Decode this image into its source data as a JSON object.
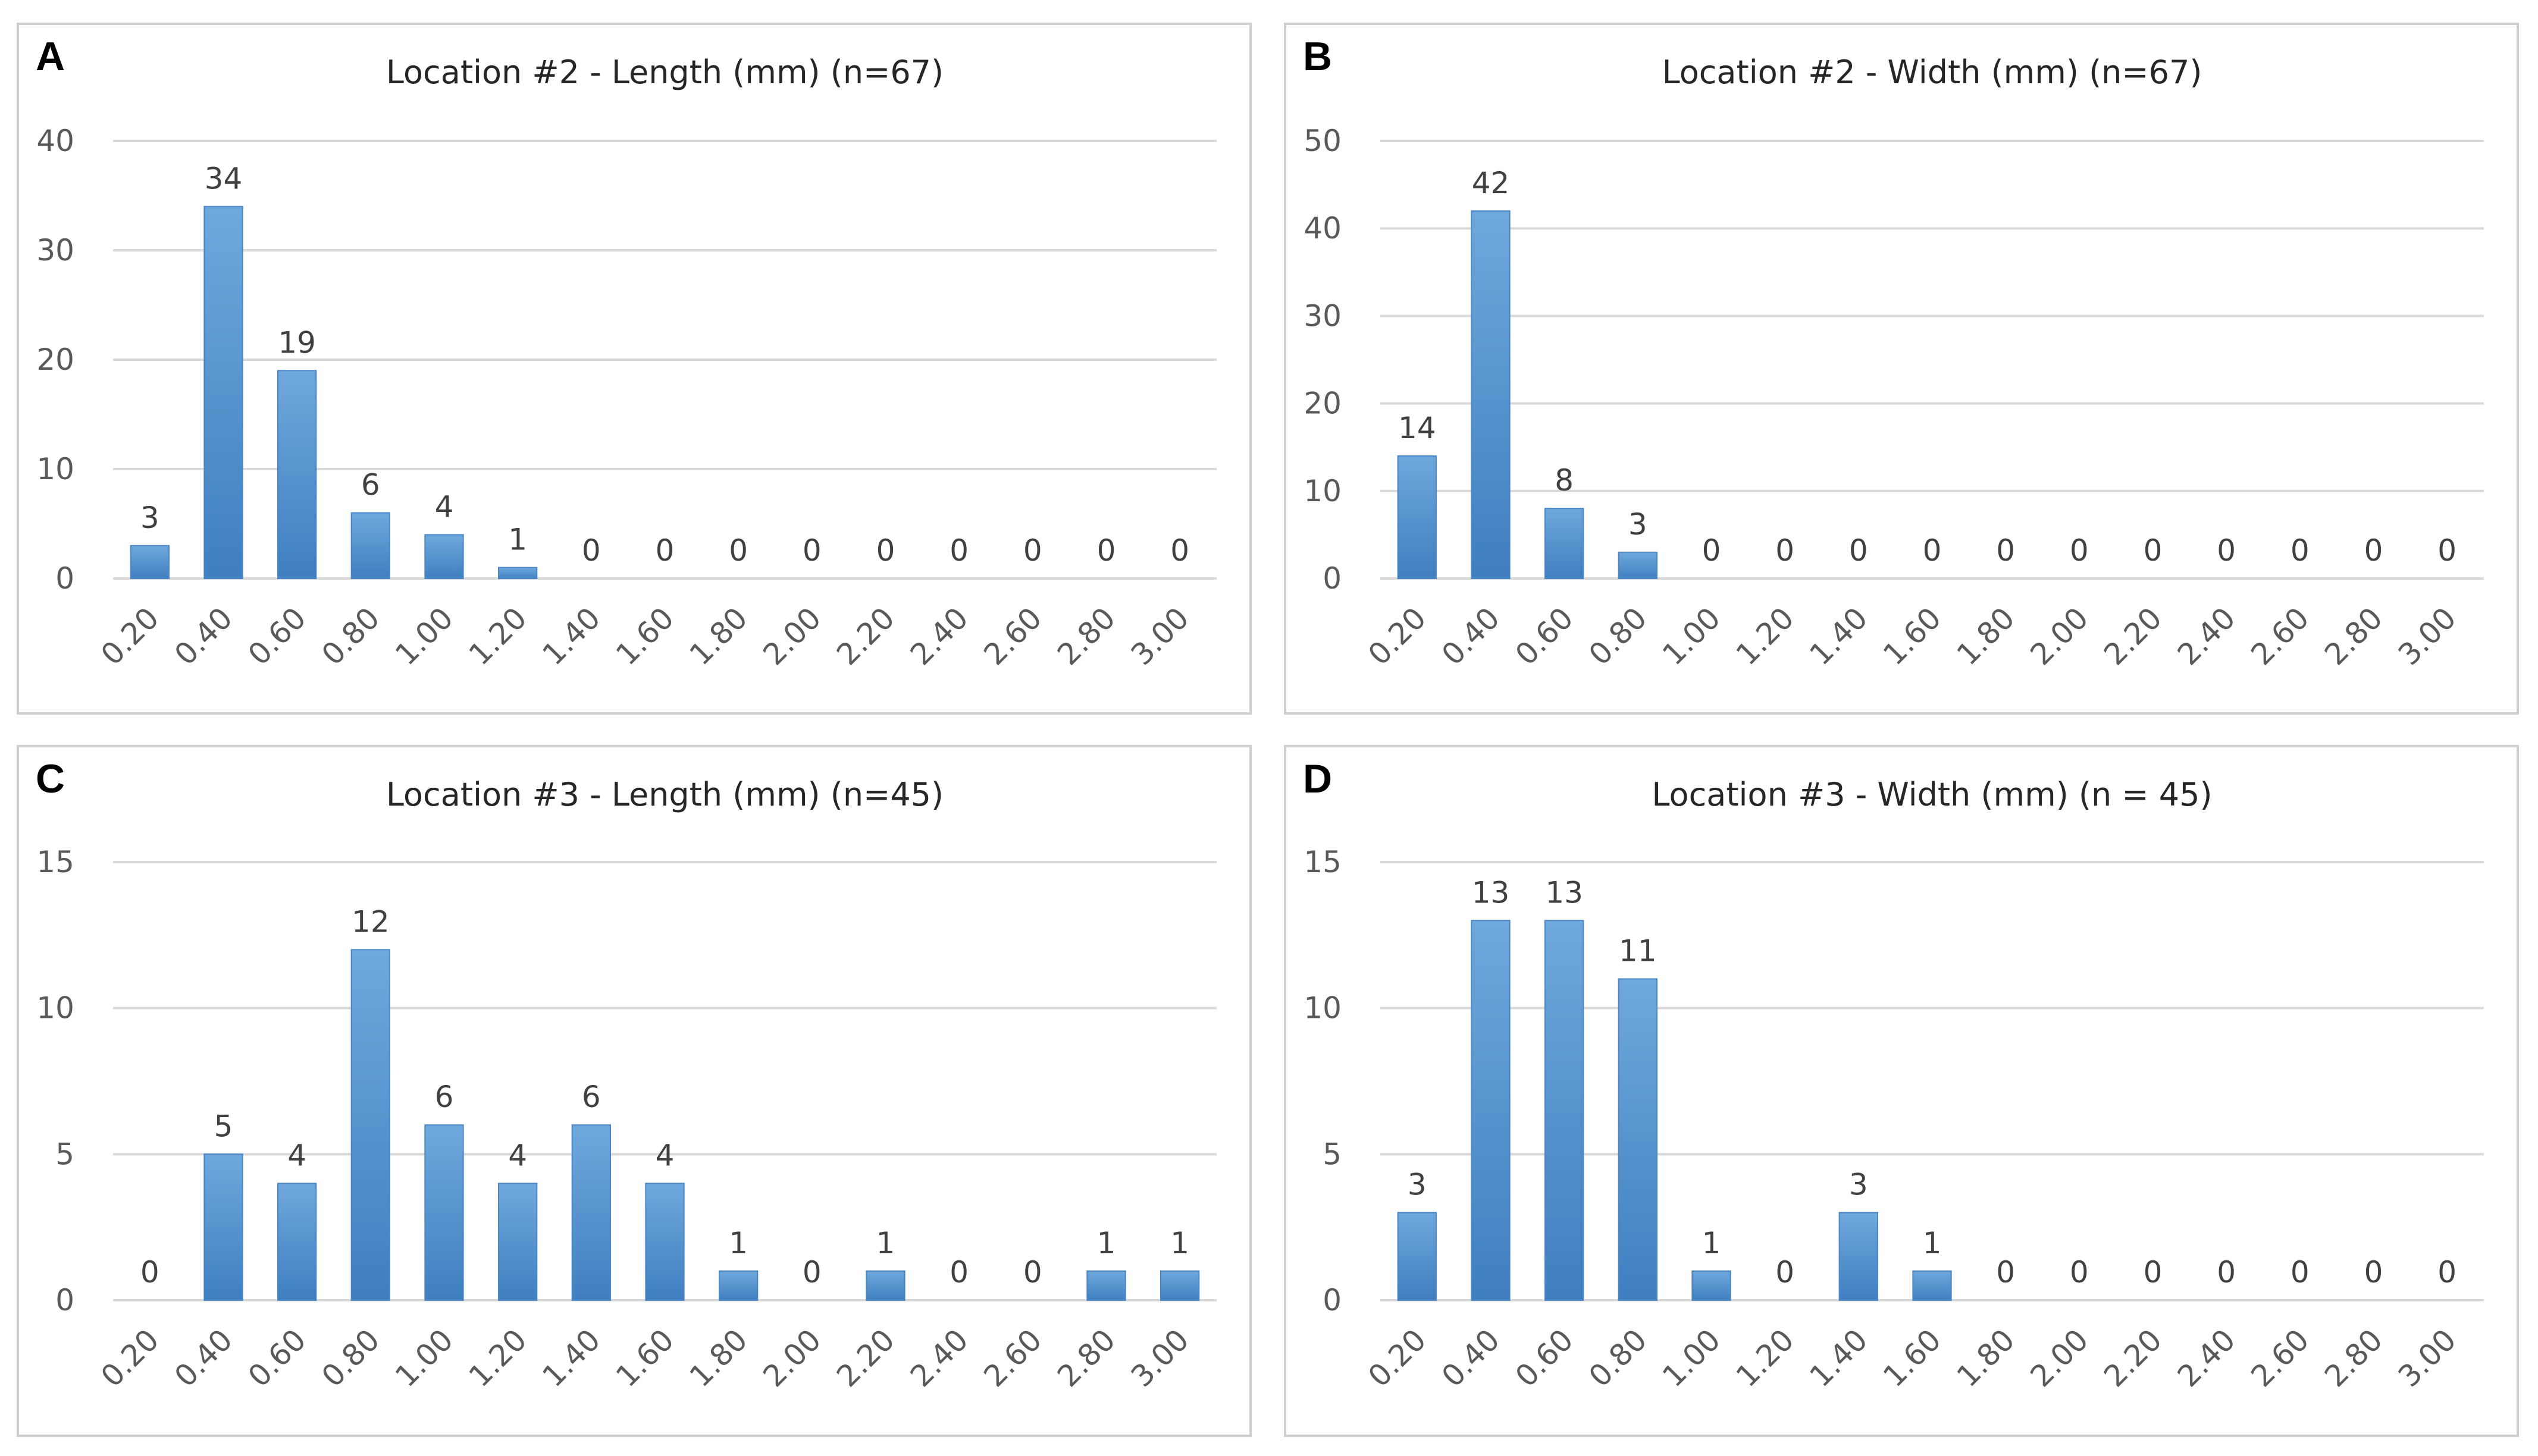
{
  "chart_data": [
    {
      "type": "bar",
      "panel": "A",
      "title": "Location #2 - Length (mm) (n=67)",
      "categories": [
        "0.20",
        "0.40",
        "0.60",
        "0.80",
        "1.00",
        "1.20",
        "1.40",
        "1.60",
        "1.80",
        "2.00",
        "2.20",
        "2.40",
        "2.60",
        "2.80",
        "3.00"
      ],
      "values": [
        3,
        34,
        19,
        6,
        4,
        1,
        0,
        0,
        0,
        0,
        0,
        0,
        0,
        0,
        0
      ],
      "ylim": [
        0,
        40
      ],
      "yticks": [
        0,
        10,
        20,
        30,
        40
      ],
      "xlabel": "",
      "ylabel": "",
      "grid": true,
      "legend": "none",
      "bar_color": "#5b9bd5"
    },
    {
      "type": "bar",
      "panel": "B",
      "title": "Location #2 - Width (mm) (n=67)",
      "categories": [
        "0.20",
        "0.40",
        "0.60",
        "0.80",
        "1.00",
        "1.20",
        "1.40",
        "1.60",
        "1.80",
        "2.00",
        "2.20",
        "2.40",
        "2.60",
        "2.80",
        "3.00"
      ],
      "values": [
        14,
        42,
        8,
        3,
        0,
        0,
        0,
        0,
        0,
        0,
        0,
        0,
        0,
        0,
        0
      ],
      "ylim": [
        0,
        50
      ],
      "yticks": [
        0,
        10,
        20,
        30,
        40,
        50
      ],
      "xlabel": "",
      "ylabel": "",
      "grid": true,
      "legend": "none",
      "bar_color": "#5b9bd5"
    },
    {
      "type": "bar",
      "panel": "C",
      "title": "Location #3 - Length (mm) (n=45)",
      "categories": [
        "0.20",
        "0.40",
        "0.60",
        "0.80",
        "1.00",
        "1.20",
        "1.40",
        "1.60",
        "1.80",
        "2.00",
        "2.20",
        "2.40",
        "2.60",
        "2.80",
        "3.00"
      ],
      "values": [
        0,
        5,
        4,
        12,
        6,
        4,
        6,
        4,
        1,
        0,
        1,
        0,
        0,
        1,
        1
      ],
      "ylim": [
        0,
        15
      ],
      "yticks": [
        0,
        5,
        10,
        15
      ],
      "xlabel": "",
      "ylabel": "",
      "grid": true,
      "legend": "none",
      "bar_color": "#5b9bd5"
    },
    {
      "type": "bar",
      "panel": "D",
      "title": "Location #3 - Width (mm) (n = 45)",
      "categories": [
        "0.20",
        "0.40",
        "0.60",
        "0.80",
        "1.00",
        "1.20",
        "1.40",
        "1.60",
        "1.80",
        "2.00",
        "2.20",
        "2.40",
        "2.60",
        "2.80",
        "3.00"
      ],
      "values": [
        3,
        13,
        13,
        11,
        1,
        0,
        3,
        1,
        0,
        0,
        0,
        0,
        0,
        0,
        0
      ],
      "ylim": [
        0,
        15
      ],
      "yticks": [
        0,
        5,
        10,
        15
      ],
      "xlabel": "",
      "ylabel": "",
      "grid": true,
      "legend": "none",
      "bar_color": "#5b9bd5"
    }
  ],
  "colors": {
    "bar_light": "#6fa8dc",
    "bar_dark": "#3f7fc0",
    "grid": "#d9d9d9",
    "frame": "#d0d0d0",
    "tick_text": "#595959",
    "label_text": "#404040",
    "title_text": "#262626"
  }
}
